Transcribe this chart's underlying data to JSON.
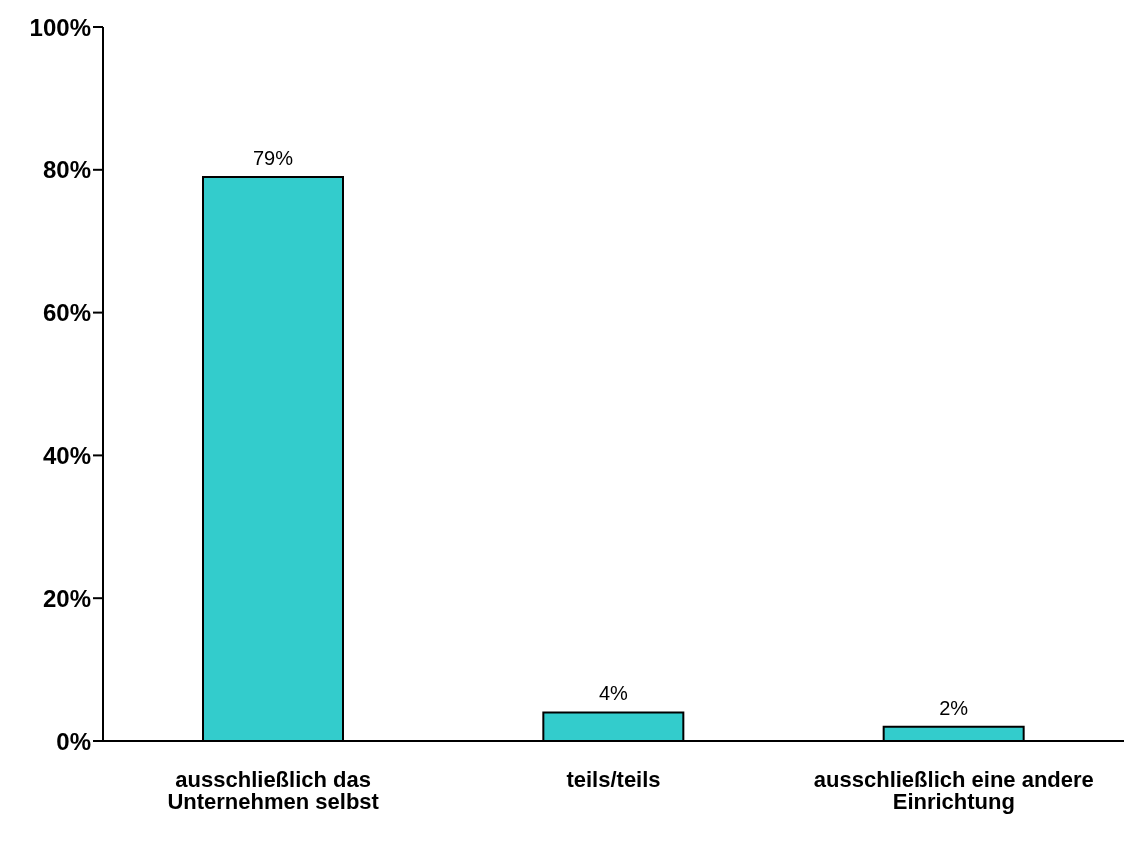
{
  "chart_data": {
    "type": "bar",
    "categories": [
      "ausschließlich das Unternehmen selbst",
      "teils/teils",
      "ausschließlich eine andere Einrichtung"
    ],
    "values": [
      79,
      4,
      2
    ],
    "color": "#33cccc",
    "value_labels": [
      "79%",
      "4%",
      "2%"
    ],
    "ylim": [
      0,
      100
    ],
    "yticks": [
      {
        "value": 0,
        "label": "0%"
      },
      {
        "value": 20,
        "label": "20%"
      },
      {
        "value": 40,
        "label": "40%"
      },
      {
        "value": 60,
        "label": "60%"
      },
      {
        "value": 80,
        "label": "80%"
      },
      {
        "value": 100,
        "label": "100%"
      }
    ],
    "grid": false,
    "legend": false
  }
}
